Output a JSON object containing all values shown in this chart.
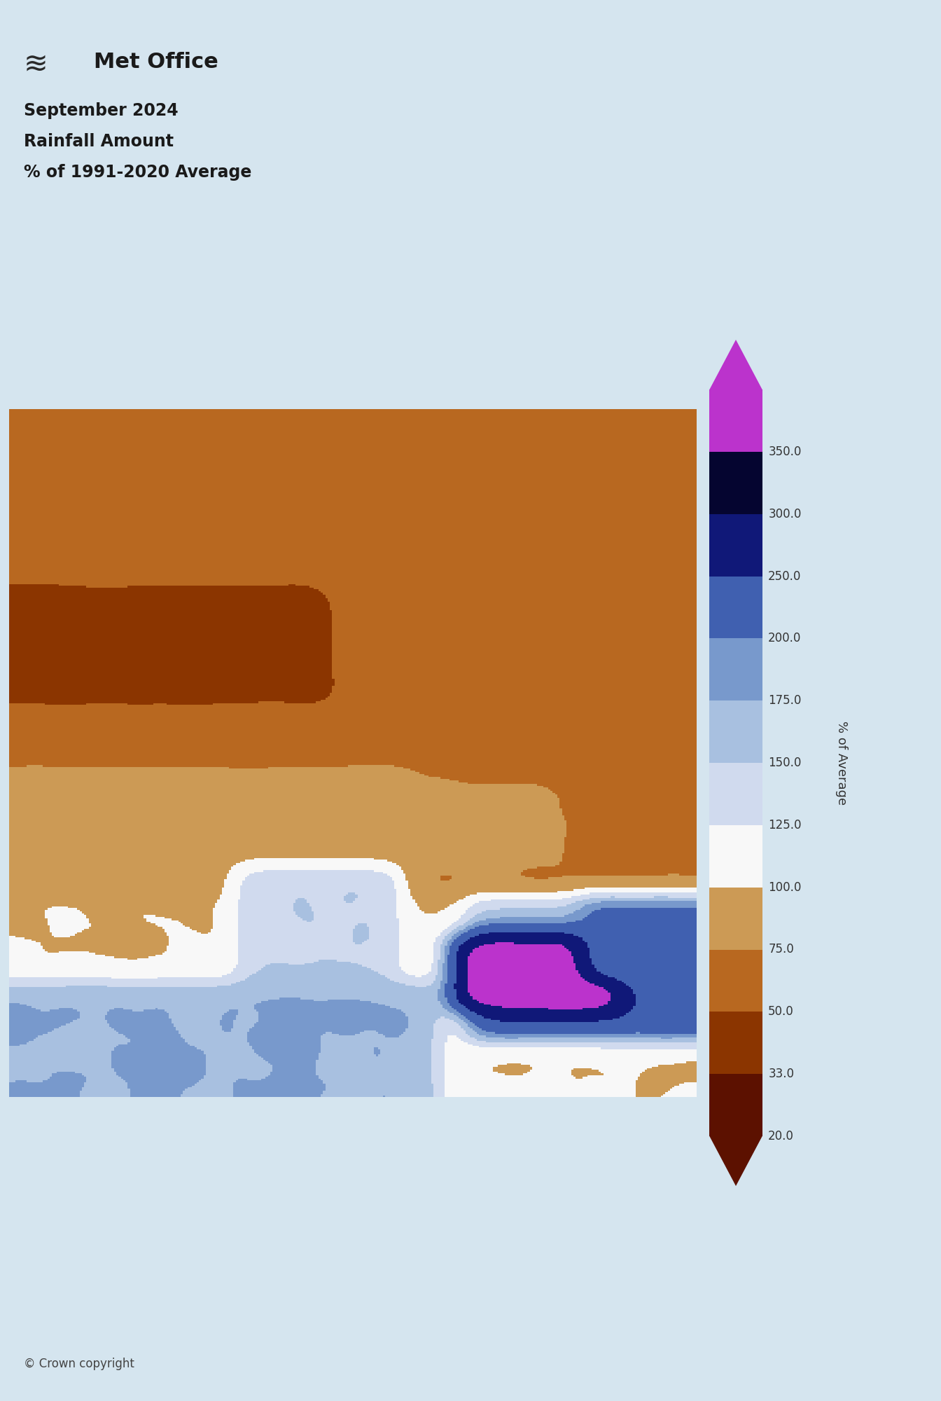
{
  "title_line1": "September 2024",
  "title_line2": "Rainfall Amount",
  "title_line3": "% of 1991-2020 Average",
  "met_office_text": "Met Office",
  "copyright_text": "© Crown copyright",
  "colorbar_label": "% of Average",
  "colorbar_levels": [
    20.0,
    33.0,
    50.0,
    75.0,
    100.0,
    125.0,
    150.0,
    175.0,
    200.0,
    250.0,
    300.0,
    350.0
  ],
  "colorbar_colors": [
    "#5c1100",
    "#8b3500",
    "#b86820",
    "#cc9a55",
    "#f8f8f8",
    "#d0daee",
    "#a8c0e0",
    "#7899cc",
    "#4060b0",
    "#101878",
    "#050530",
    "#bb33cc"
  ],
  "background_color": "#d5e5ef",
  "map_extent_lon": [
    -9.5,
    2.5
  ],
  "map_extent_lat": [
    49.5,
    61.5
  ],
  "figure_width": 13.44,
  "figure_height": 20.0,
  "dpi": 100,
  "rainfall_seed": 42
}
